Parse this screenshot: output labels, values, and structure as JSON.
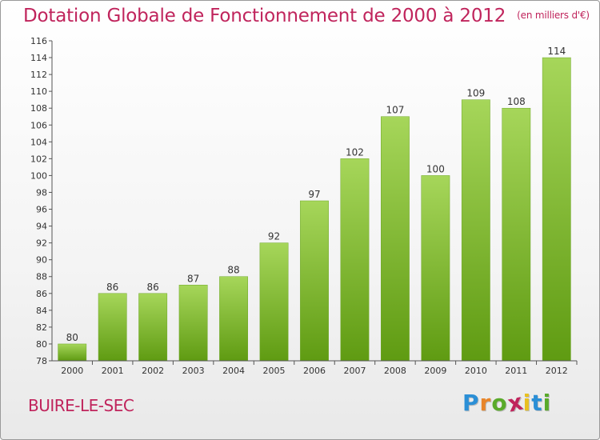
{
  "header": {
    "title": "Dotation Globale de Fonctionnement de 2000 à 2012",
    "unit": "(en milliers d'€)"
  },
  "footer": {
    "town": "BUIRE-LE-SEC",
    "logo_letters": [
      "P",
      "r",
      "o",
      "x",
      "i",
      "t",
      "i"
    ],
    "logo_colors": [
      "#2b8fd6",
      "#e8852a",
      "#5aaa2a",
      "#c0245c",
      "#e8c020",
      "#2b8fd6",
      "#5aaa2a"
    ]
  },
  "colors": {
    "bar_light": "#a6d65a",
    "bar_dark": "#5f9b12",
    "accent": "#c0245c"
  },
  "chart_data": {
    "type": "bar",
    "title": "Dotation Globale de Fonctionnement de 2000 à 2012",
    "subtitle": "(en milliers d'€)",
    "categories": [
      "2000",
      "2001",
      "2002",
      "2003",
      "2004",
      "2005",
      "2006",
      "2007",
      "2008",
      "2009",
      "2010",
      "2011",
      "2012"
    ],
    "values": [
      80,
      86,
      86,
      87,
      88,
      92,
      97,
      102,
      107,
      100,
      109,
      108,
      114
    ],
    "ylim": [
      78,
      116
    ],
    "yticks": [
      78,
      80,
      82,
      84,
      86,
      88,
      90,
      92,
      94,
      96,
      98,
      100,
      102,
      104,
      106,
      108,
      110,
      112,
      114,
      116
    ],
    "grid": false,
    "data_labels": true
  }
}
